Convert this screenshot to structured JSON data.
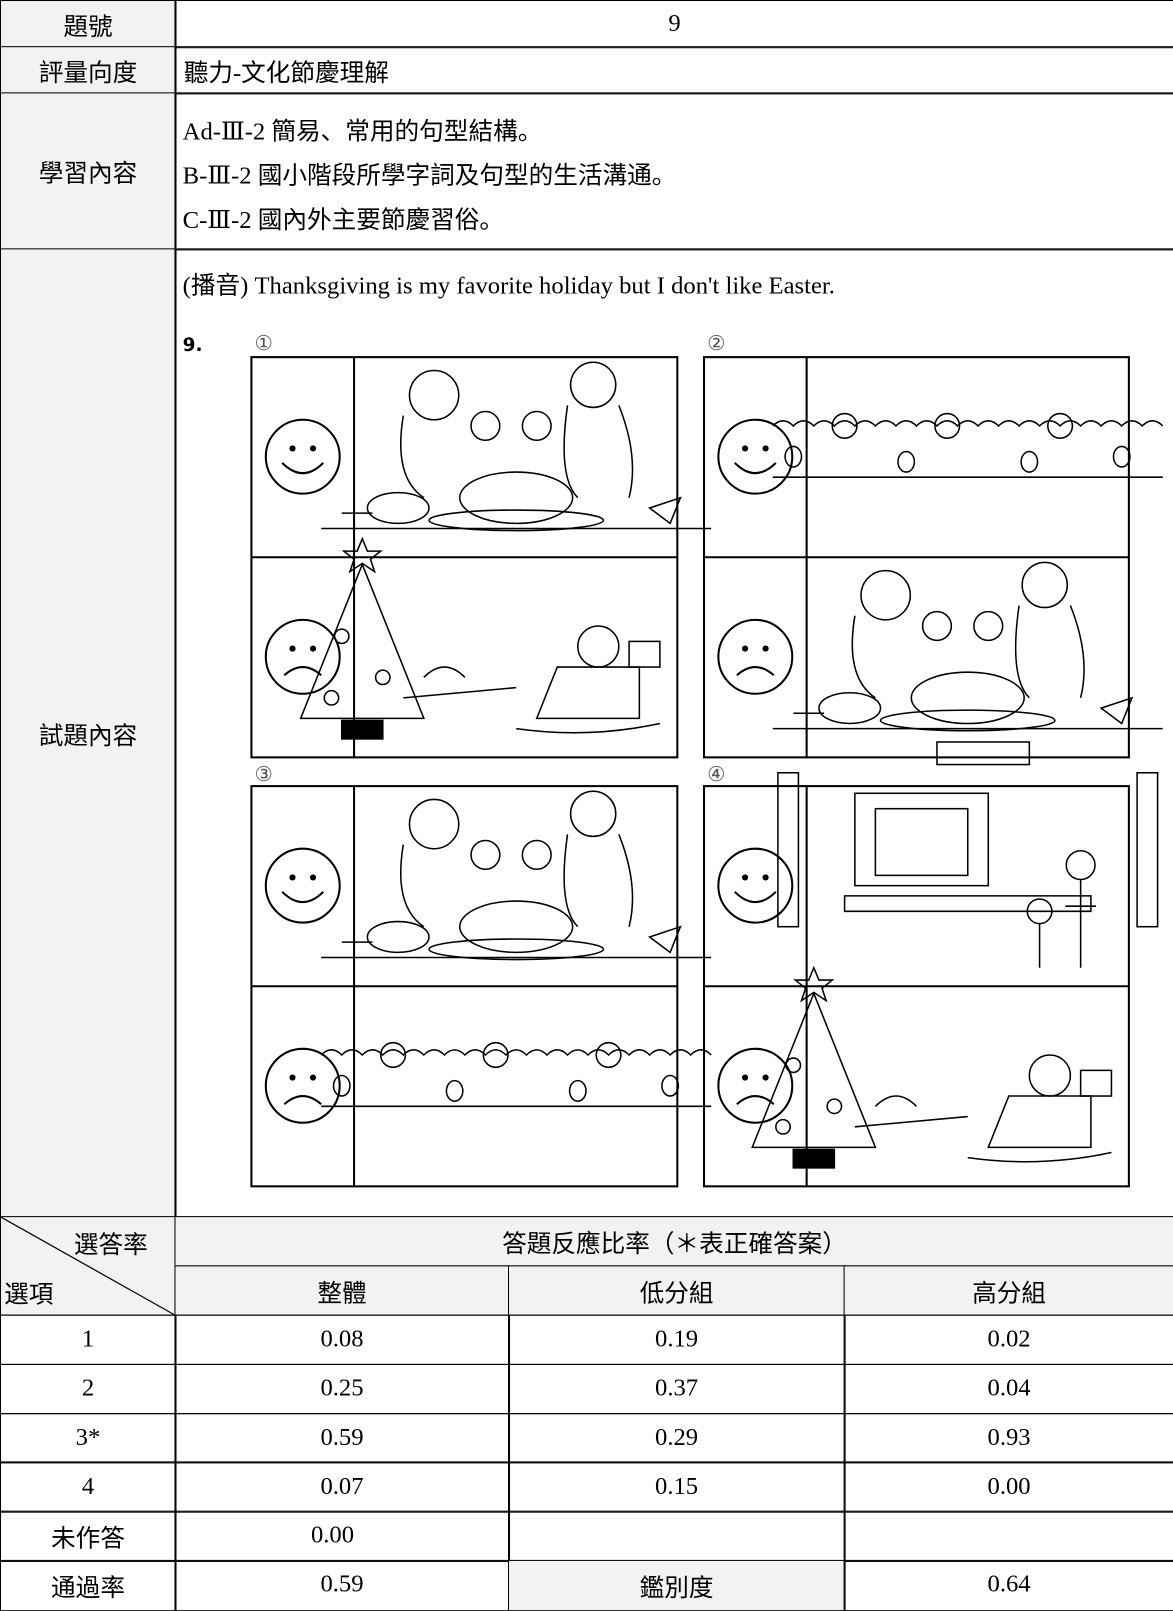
{
  "question_no": {
    "label": "題號",
    "value": "9"
  },
  "dimension": {
    "label": "評量向度",
    "value": "聽力-文化節慶理解"
  },
  "learning_content": {
    "label": "學習內容",
    "lines": [
      "Ad-Ⅲ-2 簡易、常用的句型結構。",
      "B-Ⅲ-2 國小階段所學字詞及句型的生活溝通。",
      "C-Ⅲ-2 國內外主要節慶習俗。"
    ]
  },
  "item": {
    "label": "試題內容",
    "audio": "(播音) Thanksgiving is my favorite holiday but I don't like Easter.",
    "number": "9.",
    "options": [
      "①",
      "②",
      "③",
      "④"
    ]
  },
  "stats": {
    "corner_top": "選答率",
    "corner_bottom": "選項",
    "title": "答題反應比率（＊表正確答案）",
    "columns": [
      "整體",
      "低分組",
      "高分組"
    ],
    "rows": [
      {
        "option": "1",
        "values": [
          "0.08",
          "0.19",
          "0.02"
        ]
      },
      {
        "option": "2",
        "values": [
          "0.25",
          "0.37",
          "0.04"
        ]
      },
      {
        "option": "3*",
        "values": [
          "0.59",
          "0.29",
          "0.93"
        ]
      },
      {
        "option": "4",
        "values": [
          "0.07",
          "0.15",
          "0.00"
        ]
      }
    ],
    "unanswered": {
      "label": "未作答",
      "value": "0.00"
    },
    "pass_rate": {
      "label": "通過率",
      "value": "0.59"
    },
    "discrimination": {
      "label": "鑑別度",
      "value": "0.64"
    }
  }
}
